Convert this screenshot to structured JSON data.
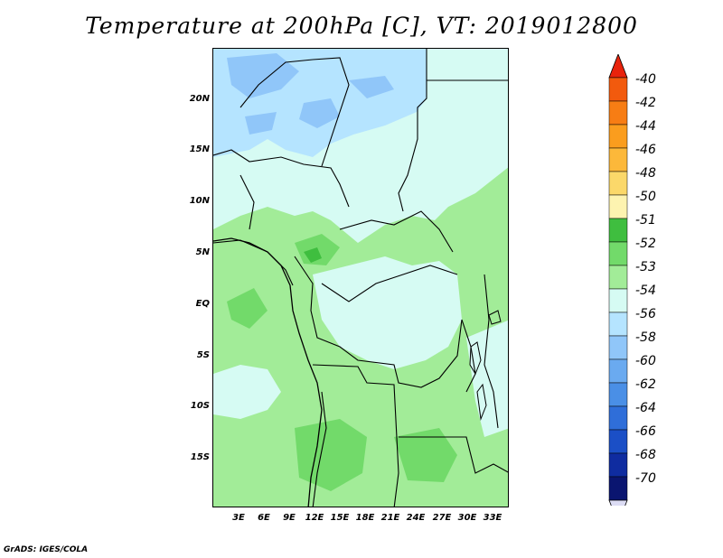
{
  "title": "Temperature at 200hPa [C], VT: 2019012800",
  "footer": "GrADS: IGES/COLA",
  "map": {
    "lat_labels": [
      "20N",
      "15N",
      "10N",
      "5N",
      "EQ",
      "5S",
      "10S",
      "15S"
    ],
    "lon_labels": [
      "3E",
      "6E",
      "9E",
      "12E",
      "15E",
      "18E",
      "21E",
      "24E",
      "27E",
      "30E",
      "33E"
    ]
  },
  "colorbar": {
    "labels": [
      "-40",
      "-42",
      "-44",
      "-46",
      "-48",
      "-50",
      "-51",
      "-52",
      "-53",
      "-54",
      "-56",
      "-58",
      "-60",
      "-62",
      "-64",
      "-66",
      "-68",
      "-70"
    ],
    "colors": [
      "#e8230c",
      "#f25a0d",
      "#f77d14",
      "#fa9d1e",
      "#fcb83a",
      "#fbd86a",
      "#fdf3b0",
      "#3fbe3f",
      "#72da6a",
      "#a2ec98",
      "#d6fbf3",
      "#b5e4ff",
      "#90c6f9",
      "#6aaaf0",
      "#4a8fe6",
      "#2f6ed9",
      "#1b4fc6",
      "#0f2ca0",
      "#0a1570",
      "#dcdcf4"
    ]
  }
}
